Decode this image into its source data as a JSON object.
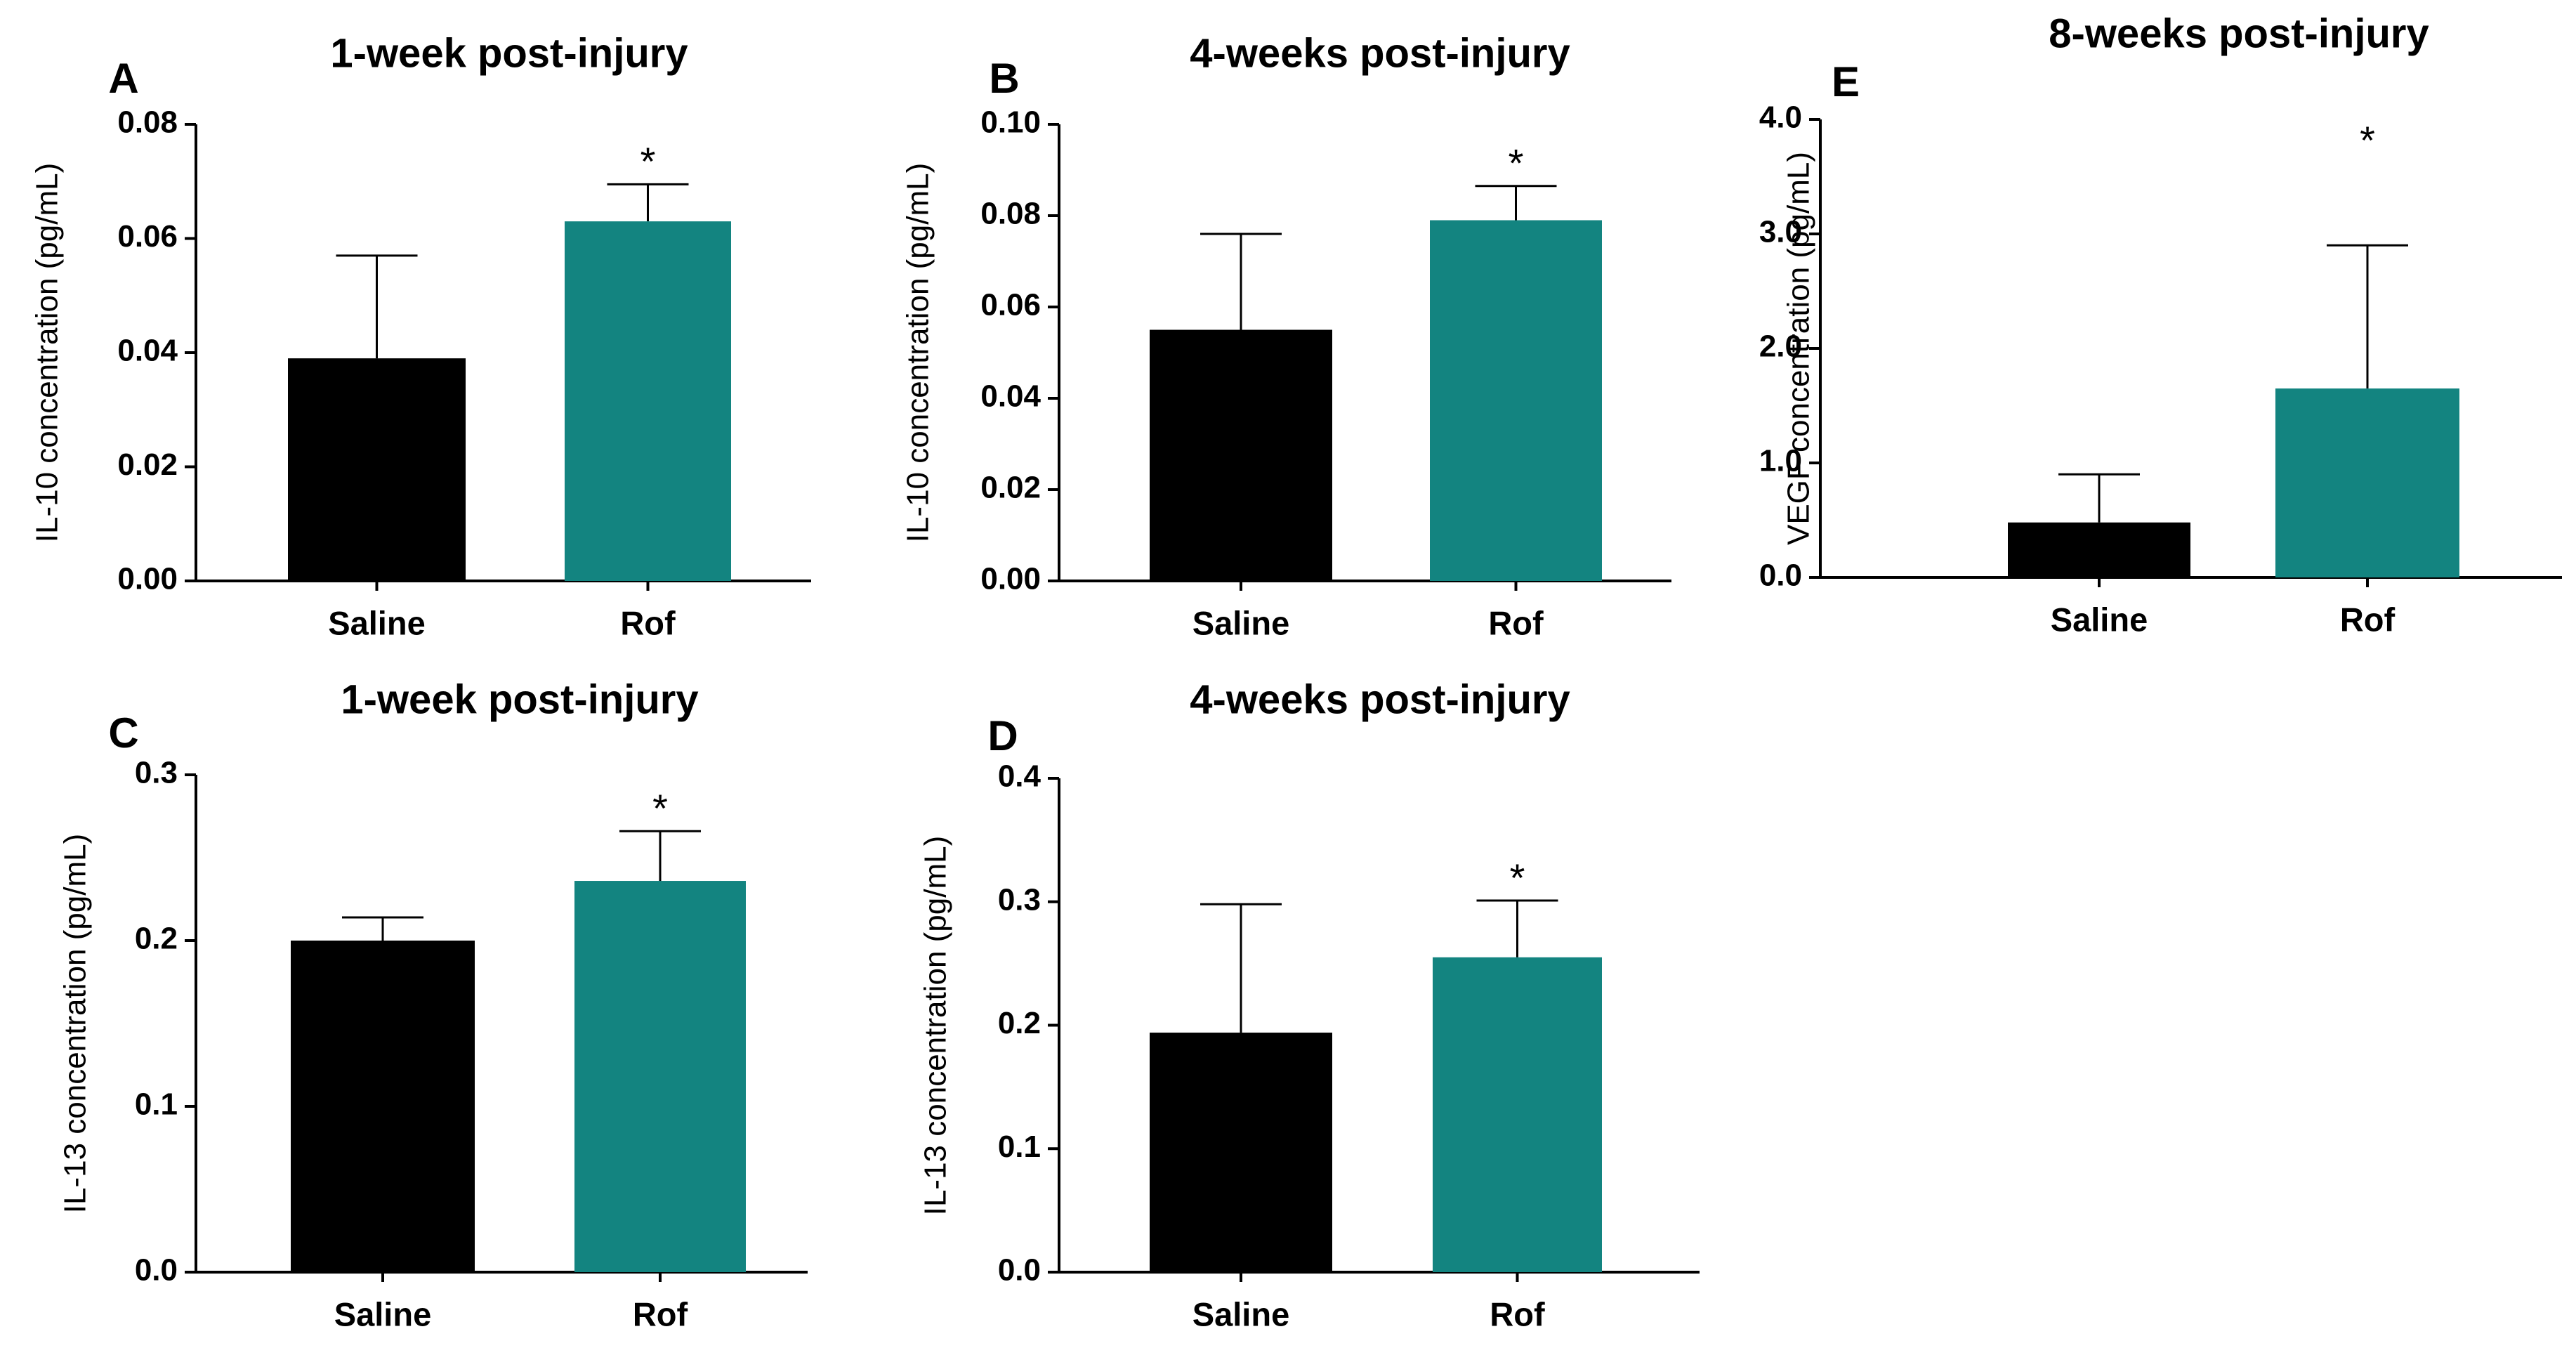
{
  "colors": {
    "saline": "#000000",
    "rof": "#138480",
    "axis": "#000000",
    "error_bar": "#000000"
  },
  "chart_data": [
    {
      "panel": "A",
      "type": "bar",
      "title": "1-week post-injury",
      "ylabel": "IL-10 concentration  (pg/mL)",
      "xlabel": "",
      "categories": [
        "Saline",
        "Rof"
      ],
      "values": [
        0.039,
        0.063
      ],
      "error_upper": [
        0.057,
        0.0695
      ],
      "significance": [
        "",
        "*"
      ],
      "ylim": [
        0,
        0.08
      ],
      "yticks": [
        "0.00",
        "0.02",
        "0.04",
        "0.06",
        "0.08"
      ],
      "grid": false,
      "legend": "none"
    },
    {
      "panel": "B",
      "type": "bar",
      "title": "4-weeks post-injury",
      "ylabel": "IL-10 concentration  (pg/mL)",
      "xlabel": "",
      "categories": [
        "Saline",
        "Rof"
      ],
      "values": [
        0.055,
        0.079
      ],
      "error_upper": [
        0.076,
        0.0865
      ],
      "significance": [
        "",
        "*"
      ],
      "ylim": [
        0,
        0.1
      ],
      "yticks": [
        "0.00",
        "0.02",
        "0.04",
        "0.06",
        "0.08",
        "0.10"
      ],
      "grid": false,
      "legend": "none"
    },
    {
      "panel": "E",
      "type": "bar",
      "title": "8-weeks post-injury",
      "ylabel": "VEGF concentration  (pg/mL)",
      "xlabel": "",
      "categories": [
        "Saline",
        "Rof"
      ],
      "values": [
        0.48,
        1.65
      ],
      "error_upper": [
        0.9,
        2.9
      ],
      "significance": [
        "",
        "*"
      ],
      "ylim": [
        0,
        4.0
      ],
      "yticks": [
        "0.0",
        "1.0",
        "2.0",
        "3.0",
        "4.0"
      ],
      "grid": false,
      "legend": "none"
    },
    {
      "panel": "C",
      "type": "bar",
      "title": "1-week post-injury",
      "ylabel": "IL-13 concentration  (pg/mL)",
      "xlabel": "",
      "categories": [
        "Saline",
        "Rof"
      ],
      "values": [
        0.2,
        0.236
      ],
      "error_upper": [
        0.214,
        0.266
      ],
      "significance": [
        "",
        "*"
      ],
      "ylim": [
        0,
        0.3
      ],
      "yticks": [
        "0.0",
        "0.1",
        "0.2",
        "0.3"
      ],
      "grid": false,
      "legend": "none"
    },
    {
      "panel": "D",
      "type": "bar",
      "title": "4-weeks post-injury",
      "ylabel": "IL-13 concentration  (pg/mL)",
      "xlabel": "",
      "categories": [
        "Saline",
        "Rof"
      ],
      "values": [
        0.194,
        0.255
      ],
      "error_upper": [
        0.298,
        0.301
      ],
      "significance": [
        "",
        "*"
      ],
      "ylim": [
        0,
        0.4
      ],
      "yticks": [
        "0.0",
        "0.1",
        "0.2",
        "0.3",
        "0.4"
      ],
      "grid": false,
      "legend": "none"
    }
  ]
}
